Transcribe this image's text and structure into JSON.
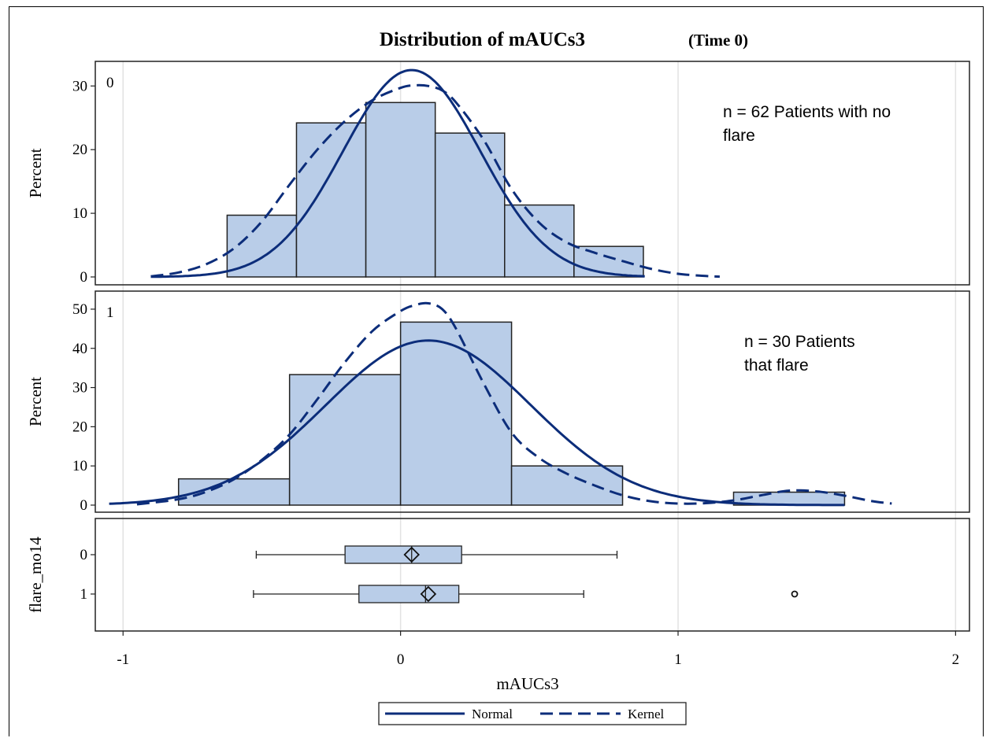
{
  "chart_data": {
    "type": "bar",
    "title": "Distribution of mAUCs3",
    "title_suffix": "(Time 0)",
    "xlabel": "mAUCs3",
    "xlim": [
      -1.1,
      2.05
    ],
    "x_ticks": [
      "-1",
      "0",
      "1",
      "2"
    ],
    "x_tick_values": [
      -1,
      0,
      1,
      2
    ],
    "grid": true,
    "colors": {
      "bar_fill": "#b9cde8",
      "bar_edge": "#222222",
      "curve": "#0c2d7a",
      "grid": "#e2e2e2"
    },
    "panels": [
      {
        "group": "0",
        "ylabel": "Percent",
        "ylim": [
          0,
          33
        ],
        "y_ticks": [
          0,
          10,
          20,
          30
        ],
        "annotation": [
          "n = 62 Patients with no",
          "flare"
        ],
        "bin_edges": [
          -0.625,
          -0.375,
          -0.125,
          0.125,
          0.375,
          0.625,
          0.875
        ],
        "values": [
          9.7,
          24.2,
          27.4,
          22.6,
          11.3,
          4.8
        ],
        "normal": {
          "mean": 0.04,
          "peak": 32.5,
          "sd": 0.248,
          "range": [
            -0.9,
            0.88
          ]
        },
        "kernel_x": [
          -0.9,
          -0.8,
          -0.7,
          -0.6,
          -0.5,
          -0.4,
          -0.3,
          -0.2,
          -0.1,
          0.0,
          0.05,
          0.1,
          0.15,
          0.2,
          0.3,
          0.4,
          0.5,
          0.6,
          0.7,
          0.8,
          0.9,
          1.0,
          1.1,
          1.15
        ],
        "kernel_y": [
          0.1,
          0.7,
          2.0,
          4.5,
          8.7,
          14.5,
          20.0,
          24.5,
          27.8,
          29.7,
          30.1,
          30.0,
          29.3,
          27.4,
          21.5,
          13.8,
          8.5,
          5.4,
          3.8,
          2.5,
          1.3,
          0.5,
          0.15,
          0.05
        ]
      },
      {
        "group": "1",
        "ylabel": "Percent",
        "ylim": [
          0,
          53
        ],
        "y_ticks": [
          0,
          10,
          20,
          30,
          40,
          50
        ],
        "annotation": [
          "n = 30 Patients",
          "that flare"
        ],
        "bin_edges": [
          -0.8,
          -0.4,
          0.0,
          0.4,
          0.8,
          1.2,
          1.6
        ],
        "values": [
          6.7,
          33.3,
          46.7,
          10.0,
          0.0,
          3.3
        ],
        "normal": {
          "mean": 0.1,
          "peak": 42,
          "sd": 0.37,
          "range": [
            -1.05,
            1.6
          ]
        },
        "kernel_x": [
          -0.95,
          -0.8,
          -0.7,
          -0.6,
          -0.5,
          -0.4,
          -0.3,
          -0.2,
          -0.1,
          0.0,
          0.05,
          0.1,
          0.15,
          0.2,
          0.3,
          0.4,
          0.5,
          0.6,
          0.7,
          0.8,
          0.9,
          1.0,
          1.1,
          1.2,
          1.3,
          1.4,
          1.5,
          1.6,
          1.7,
          1.77
        ],
        "kernel_y": [
          0.2,
          1.5,
          3.4,
          6.6,
          11.5,
          18.0,
          27.0,
          36.5,
          44.5,
          49.5,
          51.0,
          51.5,
          50.0,
          45.0,
          31.0,
          18.5,
          12.0,
          8.0,
          5.0,
          2.5,
          1.0,
          0.4,
          0.5,
          1.2,
          2.5,
          3.7,
          3.5,
          2.4,
          1.0,
          0.4
        ]
      }
    ],
    "boxplot": {
      "ylabel": "flare_mo14",
      "categories": [
        "0",
        "1"
      ],
      "stats": [
        {
          "whisker_low": -0.52,
          "q1": -0.2,
          "median": 0.04,
          "mean": 0.04,
          "q3": 0.22,
          "whisker_high": 0.78,
          "outliers": []
        },
        {
          "whisker_low": -0.53,
          "q1": -0.15,
          "median": 0.09,
          "mean": 0.1,
          "q3": 0.21,
          "whisker_high": 0.66,
          "outliers": [
            1.42
          ]
        }
      ]
    },
    "legend": {
      "position": "bottom",
      "items": [
        {
          "label": "Normal",
          "style": "solid"
        },
        {
          "label": "Kernel",
          "style": "dashed"
        }
      ]
    }
  }
}
